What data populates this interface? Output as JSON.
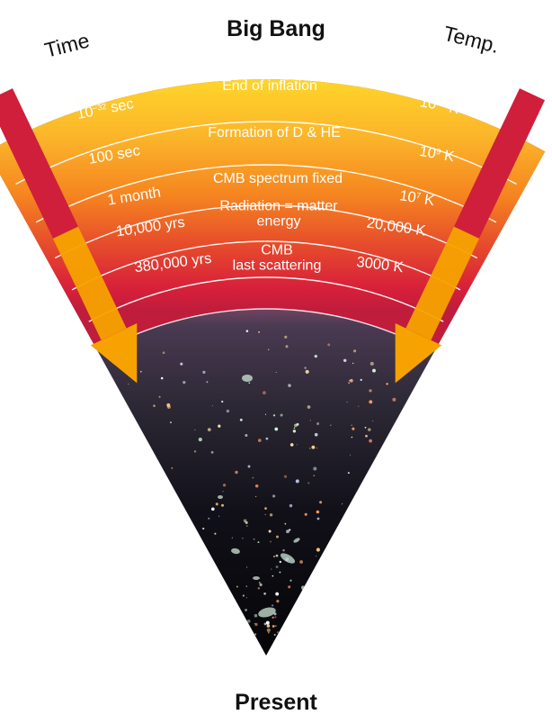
{
  "title_top": "Big Bang",
  "title_bottom": "Present",
  "left_axis_label": "Time",
  "right_axis_label": "Temp.",
  "epochs": [
    {
      "label": "End of inflation",
      "time": {
        "base": "10",
        "exp": "−32",
        "unit": " sec"
      },
      "temp": {
        "base": "10",
        "exp": "19",
        "unit": " K"
      }
    },
    {
      "label": "Formation of D & HE",
      "time": {
        "base": "100 sec",
        "exp": "",
        "unit": ""
      },
      "temp": {
        "base": "10",
        "exp": "9",
        "unit": " K"
      }
    },
    {
      "label": "CMB spectrum fixed",
      "time": {
        "base": "1 month",
        "exp": "",
        "unit": ""
      },
      "temp": {
        "base": "10",
        "exp": "7",
        "unit": " K"
      }
    },
    {
      "label": "Radiation = matter\nenergy",
      "time": {
        "base": "10,000 yrs",
        "exp": "",
        "unit": ""
      },
      "temp": {
        "base": "20,000 K",
        "exp": "",
        "unit": ""
      }
    },
    {
      "label": "CMB\nlast scattering",
      "time": {
        "base": "380,000 yrs",
        "exp": "",
        "unit": ""
      },
      "temp": {
        "base": "3000 K",
        "exp": "",
        "unit": ""
      }
    }
  ],
  "time_start": "0",
  "temp_start": "∞",
  "colors": {
    "yellow": "#ffd42a",
    "orange": "#f7931e",
    "red": "#d8203a",
    "space": "#35303f",
    "space_dark": "#050508",
    "time_bar": "#cf1f3a",
    "arrow": "#f6a200"
  }
}
